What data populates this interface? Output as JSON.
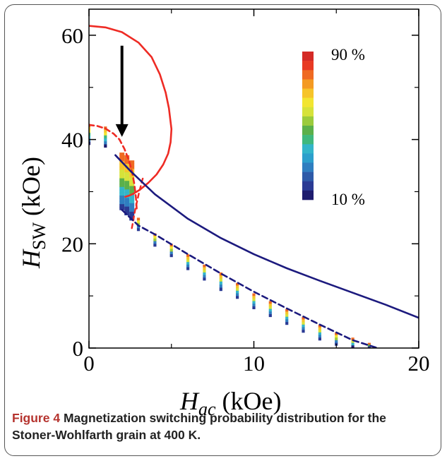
{
  "colors": {
    "solid_red": "#ee2b24",
    "dashed_red": "#ee2b24",
    "solid_navy": "#1c1a7e",
    "dashed_navy": "#1c1a7e",
    "arrow": "#000000",
    "colorbar": [
      "#1e1c6e",
      "#2a3a94",
      "#2e5aa8",
      "#2f7ec0",
      "#2c9fcc",
      "#33b5c9",
      "#3fb87d",
      "#5bb04a",
      "#9bcb3c",
      "#d6e23a",
      "#f2e531",
      "#f6c42a",
      "#f49a23",
      "#ef6a22",
      "#e83a23",
      "#d42a26"
    ]
  },
  "chart_data": {
    "type": "scatter",
    "title": "",
    "xlabel": {
      "main": "H",
      "sub": "ac",
      "unit": " (kOe)"
    },
    "ylabel": {
      "main": "H",
      "sub": "SW",
      "unit": " (kOe)"
    },
    "xlim": [
      0,
      20
    ],
    "ylim": [
      0,
      65
    ],
    "xticks": [
      0,
      10,
      20
    ],
    "yticks": [
      0,
      20,
      40,
      60
    ],
    "xtick_labels": [
      "0",
      "10",
      "20"
    ],
    "ytick_labels": [
      "0",
      "20",
      "40",
      "60"
    ],
    "grid": false,
    "colorbar": {
      "min_label": "10 %",
      "max_label": "90 %"
    },
    "series": [
      {
        "style": "solid-red",
        "x": [
          0.0,
          1.0,
          2.0,
          3.0,
          3.8,
          4.3,
          4.65,
          4.85,
          5.0,
          4.95,
          4.8,
          4.5,
          4.1,
          3.6,
          3.1,
          2.7,
          2.4,
          2.2
        ],
        "y": [
          61.8,
          61.5,
          60.6,
          58.6,
          55.8,
          52.5,
          49.0,
          46.0,
          42.0,
          39.5,
          37.3,
          35.2,
          33.3,
          31.7,
          30.4,
          29.6,
          29.2,
          29.0
        ]
      },
      {
        "style": "dashed-red",
        "x": [
          0.0,
          0.5,
          1.0,
          1.5,
          1.85,
          2.15,
          2.4,
          2.6,
          2.75,
          2.85,
          2.9
        ],
        "y": [
          42.8,
          42.6,
          42.1,
          41.1,
          40.0,
          38.2,
          36.2,
          34.0,
          31.5,
          28.8,
          26.5
        ]
      },
      {
        "style": "dashed-red-lower",
        "x": [
          2.6,
          2.8,
          3.05,
          3.3
        ],
        "y": [
          23.0,
          26.5,
          30.0,
          33.0
        ]
      },
      {
        "style": "solid-navy",
        "x": [
          1.6,
          2.5,
          4,
          6,
          8,
          10,
          12,
          14,
          16,
          18,
          20
        ],
        "y": [
          37.0,
          34.0,
          29.5,
          24.8,
          21.1,
          18.0,
          15.3,
          12.9,
          10.6,
          8.3,
          5.8
        ]
      },
      {
        "style": "dashed-navy",
        "x": [
          2,
          3,
          4,
          6,
          8,
          10,
          12,
          14,
          16,
          17.5
        ],
        "y": [
          26.5,
          23.5,
          21.8,
          18.0,
          14.3,
          10.8,
          7.6,
          4.5,
          1.5,
          0.0
        ]
      }
    ],
    "probability_columns": [
      {
        "x": 0.0,
        "y_top": 43.0,
        "y_bottom": 39.0,
        "w": 0.18
      },
      {
        "x": 1.0,
        "y_top": 42.5,
        "y_bottom": 38.5,
        "w": 0.18
      },
      {
        "x": 2.0,
        "y_top": 37.5,
        "y_bottom": 26.5,
        "w": 0.3
      },
      {
        "x": 2.3,
        "y_top": 37.0,
        "y_bottom": 25.5,
        "w": 0.3
      },
      {
        "x": 2.6,
        "y_top": 36.0,
        "y_bottom": 24.5,
        "w": 0.3
      },
      {
        "x": 3.0,
        "y_top": 25.0,
        "y_bottom": 22.5,
        "w": 0.18
      },
      {
        "x": 4.0,
        "y_top": 22.0,
        "y_bottom": 19.5,
        "w": 0.18
      },
      {
        "x": 5.0,
        "y_top": 20.0,
        "y_bottom": 17.5,
        "w": 0.18
      },
      {
        "x": 6.0,
        "y_top": 18.0,
        "y_bottom": 15.0,
        "w": 0.18
      },
      {
        "x": 7.0,
        "y_top": 16.0,
        "y_bottom": 13.0,
        "w": 0.18
      },
      {
        "x": 8.0,
        "y_top": 14.5,
        "y_bottom": 11.0,
        "w": 0.18
      },
      {
        "x": 9.0,
        "y_top": 12.5,
        "y_bottom": 9.5,
        "w": 0.18
      },
      {
        "x": 10.0,
        "y_top": 10.5,
        "y_bottom": 7.5,
        "w": 0.18
      },
      {
        "x": 11.0,
        "y_top": 9.0,
        "y_bottom": 6.0,
        "w": 0.18
      },
      {
        "x": 12.0,
        "y_top": 7.5,
        "y_bottom": 4.5,
        "w": 0.18
      },
      {
        "x": 13.0,
        "y_top": 6.0,
        "y_bottom": 3.0,
        "w": 0.18
      },
      {
        "x": 14.0,
        "y_top": 4.5,
        "y_bottom": 1.5,
        "w": 0.18
      },
      {
        "x": 15.0,
        "y_top": 3.0,
        "y_bottom": 0.5,
        "w": 0.18
      },
      {
        "x": 16.0,
        "y_top": 2.0,
        "y_bottom": 0.0,
        "w": 0.18
      },
      {
        "x": 17.0,
        "y_top": 1.0,
        "y_bottom": 0.0,
        "w": 0.18
      }
    ],
    "annotation_arrow": {
      "x": 2.0,
      "y_from": 58.0,
      "y_to": 40.5
    }
  },
  "caption": {
    "label": "Figure 4",
    "text": "Magnetization switching probability distribution for the Stoner-Wohlfarth grain at 400 K."
  }
}
